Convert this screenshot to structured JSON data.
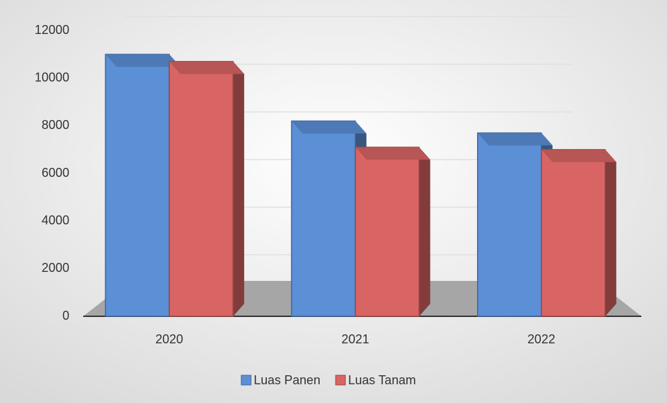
{
  "chart_data": {
    "type": "bar",
    "categories": [
      "2020",
      "2021",
      "2022"
    ],
    "series": [
      {
        "name": "Luas Panen",
        "color": "#5b8fd6",
        "values": [
          11000,
          8200,
          7700
        ]
      },
      {
        "name": "Luas Tanam",
        "color": "#d96464",
        "values": [
          10700,
          7100,
          7000
        ]
      }
    ],
    "ylim": [
      0,
      12000
    ],
    "yticks": [
      0,
      2000,
      4000,
      6000,
      8000,
      10000,
      12000
    ],
    "grid": true,
    "legend": "bottom"
  }
}
